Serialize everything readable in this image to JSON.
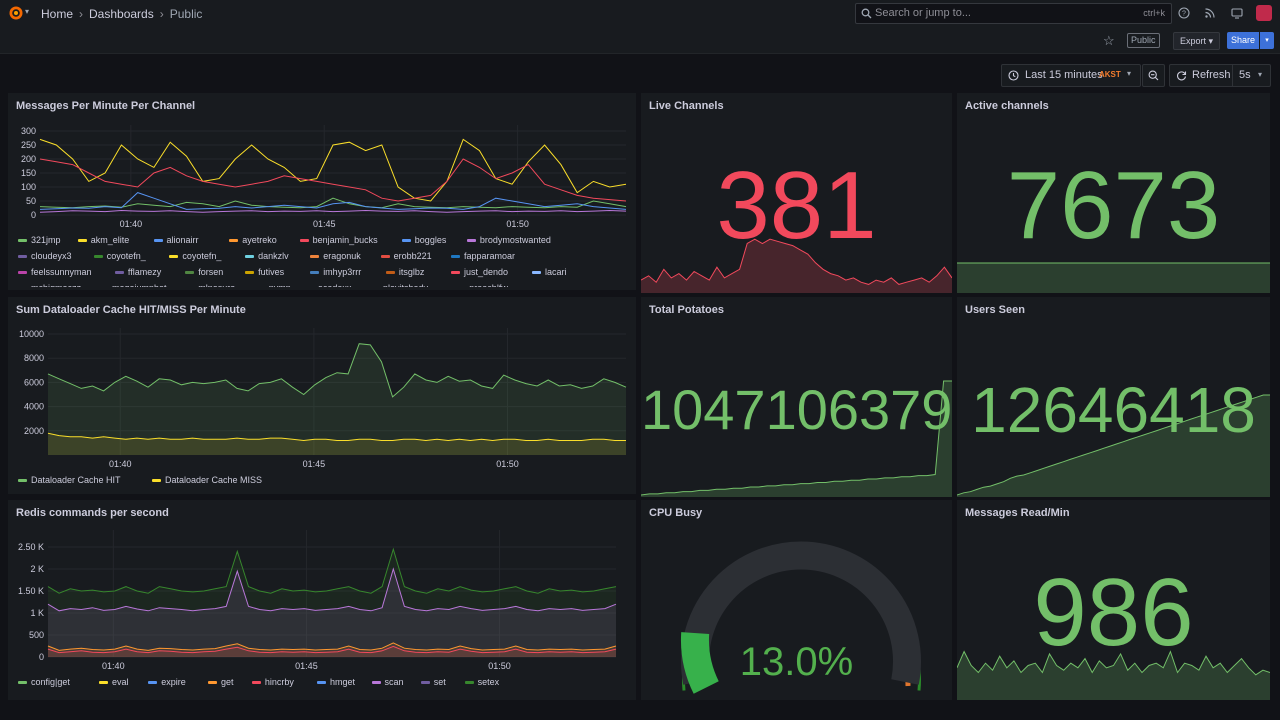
{
  "topbar": {
    "breadcrumb": [
      "Home",
      "Dashboards",
      "Public"
    ],
    "search_placeholder": "Search or jump to...",
    "search_shortcut": "ctrl+k",
    "icons": [
      "help-icon",
      "rss-icon",
      "tv-icon"
    ]
  },
  "subbar": {
    "public_badge": "Public",
    "export_label": "Export",
    "share_label": "Share"
  },
  "timebar": {
    "range_label": "Last 15 minutes",
    "timezone": "AKST",
    "refresh_label": "Refresh",
    "refresh_interval": "5s"
  },
  "colors": {
    "green": "#73bf69",
    "red": "#f2495c",
    "yellow": "#fade2a",
    "orange": "#ff9830",
    "purple": "#b877d9",
    "blue": "#5794f2"
  },
  "panels": {
    "messages": {
      "title": "Messages Per Minute Per Channel",
      "yticks": [
        "300",
        "250",
        "200",
        "150",
        "100",
        "50",
        "0"
      ],
      "xticks": [
        "01:40",
        "01:45",
        "01:50"
      ],
      "legend": [
        {
          "name": "321jmp",
          "color": "#73bf69"
        },
        {
          "name": "akm_elite",
          "color": "#fade2a"
        },
        {
          "name": "alionairr",
          "color": "#5794f2"
        },
        {
          "name": "ayetreko",
          "color": "#ff9830"
        },
        {
          "name": "benjamin_bucks",
          "color": "#f2495c"
        },
        {
          "name": "boggles",
          "color": "#5794f2"
        },
        {
          "name": "brodymostwanted",
          "color": "#b877d9"
        },
        {
          "name": "cloudeyx3",
          "color": "#705da0"
        },
        {
          "name": "coyotefn_",
          "color": "#37872d"
        },
        {
          "name": "coyotefn_",
          "color": "#fade2a"
        },
        {
          "name": "dankzlv",
          "color": "#6ed0e0"
        },
        {
          "name": "eragonuk",
          "color": "#ef843c"
        },
        {
          "name": "erobb221",
          "color": "#e24d42"
        },
        {
          "name": "fapparamoar",
          "color": "#1f78c1"
        },
        {
          "name": "feelssunnyman",
          "color": "#ba43a9"
        },
        {
          "name": "fflamezy",
          "color": "#705da0"
        },
        {
          "name": "forsen",
          "color": "#508642"
        },
        {
          "name": "futives",
          "color": "#cca300"
        },
        {
          "name": "imhyp3rrr",
          "color": "#447ebc"
        },
        {
          "name": "itsglbz",
          "color": "#c15c17"
        },
        {
          "name": "just_dendo",
          "color": "#f2495c"
        },
        {
          "name": "lacari",
          "color": "#8ab8ff"
        },
        {
          "name": "mcbigmaczz",
          "color": "#ff7383"
        },
        {
          "name": "megajumpbot",
          "color": "#ca95e5"
        },
        {
          "name": "mlnosura",
          "color": "#56a64b"
        },
        {
          "name": "nymn",
          "color": "#e0b400"
        },
        {
          "name": "ocedexx",
          "color": "#8ab8ff"
        },
        {
          "name": "playitshady",
          "color": "#ff9830"
        },
        {
          "name": "preachlfw",
          "color": "#e02f44"
        }
      ]
    },
    "live_channels": {
      "title": "Live Channels",
      "value": "381"
    },
    "active_channels": {
      "title": "Active channels",
      "value": "7673"
    },
    "dataloader": {
      "title": "Sum Dataloader Cache HIT/MISS Per Minute",
      "yticks": [
        "10000",
        "8000",
        "6000",
        "4000",
        "2000"
      ],
      "xticks": [
        "01:40",
        "01:45",
        "01:50"
      ],
      "legend": [
        {
          "name": "Dataloader Cache HIT",
          "color": "#73bf69"
        },
        {
          "name": "Dataloader Cache MISS",
          "color": "#fade2a"
        }
      ]
    },
    "total_potatoes": {
      "title": "Total Potatoes",
      "value": "1047106379"
    },
    "users_seen": {
      "title": "Users Seen",
      "value": "12646418"
    },
    "redis": {
      "title": "Redis commands per second",
      "yticks": [
        "2.50 K",
        "2 K",
        "1.50 K",
        "1 K",
        "500",
        "0"
      ],
      "xticks": [
        "01:40",
        "01:45",
        "01:50"
      ],
      "legend": [
        {
          "name": "config|get",
          "color": "#73bf69"
        },
        {
          "name": "eval",
          "color": "#fade2a"
        },
        {
          "name": "expire",
          "color": "#5794f2"
        },
        {
          "name": "get",
          "color": "#ff9830"
        },
        {
          "name": "hincrby",
          "color": "#f2495c"
        },
        {
          "name": "hmget",
          "color": "#5794f2"
        },
        {
          "name": "scan",
          "color": "#b877d9"
        },
        {
          "name": "set",
          "color": "#705da0"
        },
        {
          "name": "setex",
          "color": "#37872d"
        }
      ]
    },
    "cpu_busy": {
      "title": "CPU Busy",
      "value": "13.0%",
      "percent": 13.0
    },
    "messages_read": {
      "title": "Messages Read/Min",
      "value": "986"
    }
  },
  "chart_data": [
    {
      "type": "line",
      "title": "Messages Per Minute Per Channel",
      "ylim": [
        0,
        300
      ],
      "series": [
        {
          "name": "akm_elite",
          "values": [
            270,
            250,
            200,
            120,
            150,
            250,
            200,
            170,
            260,
            210,
            120,
            130,
            200,
            250,
            200,
            170,
            120,
            130,
            250,
            260,
            230,
            250,
            100,
            60,
            50,
            120,
            270,
            230,
            130,
            110,
            190,
            250,
            180,
            80,
            120,
            100,
            110
          ]
        },
        {
          "name": "benjamin_bucks",
          "values": [
            200,
            190,
            180,
            150,
            120,
            110,
            100,
            150,
            170,
            140,
            120,
            110,
            100,
            110,
            120,
            140,
            130,
            120,
            110,
            100,
            90,
            60,
            50,
            60,
            70,
            120,
            200,
            170,
            130,
            150,
            180,
            110,
            90,
            70,
            60,
            55,
            50
          ]
        },
        {
          "name": "321jmp",
          "values": [
            30,
            28,
            26,
            30,
            32,
            28,
            40,
            35,
            30,
            45,
            40,
            30,
            50,
            35,
            30,
            28,
            26,
            30,
            60,
            40,
            30,
            26,
            40,
            30,
            28,
            26,
            30,
            28,
            26,
            30,
            28,
            26,
            30,
            28,
            50,
            40,
            30
          ]
        },
        {
          "name": "alionairr",
          "values": [
            20,
            22,
            25,
            24,
            30,
            26,
            80,
            60,
            40,
            20,
            22,
            24,
            30,
            25,
            30,
            35,
            30,
            25,
            40,
            45,
            30,
            25,
            20,
            22,
            25,
            24,
            20,
            30,
            60,
            50,
            40,
            30,
            35,
            40,
            30,
            25,
            20
          ]
        },
        {
          "name": "brodymostwanted",
          "values": [
            10,
            12,
            15,
            14,
            12,
            16,
            14,
            13,
            15,
            12,
            10,
            12,
            14,
            15,
            12,
            14,
            13,
            15,
            12,
            14,
            16,
            14,
            13,
            15,
            12,
            10,
            12,
            14,
            15,
            12,
            14,
            13,
            15,
            12,
            14,
            16,
            14
          ]
        }
      ]
    },
    {
      "type": "line",
      "title": "Sum Dataloader Cache HIT/MISS Per Minute",
      "ylim": [
        0,
        10000
      ],
      "series": [
        {
          "name": "Dataloader Cache HIT",
          "values": [
            6700,
            6300,
            5900,
            5500,
            5700,
            5300,
            6000,
            6500,
            6100,
            5600,
            6300,
            6200,
            5800,
            6000,
            5900,
            6000,
            6200,
            5500,
            5300,
            5900,
            6000,
            6300,
            5600,
            5000,
            5800,
            6400,
            6800,
            6700,
            9200,
            9100,
            7700,
            4800,
            5600,
            6700,
            6200,
            6000,
            6500,
            6100,
            6200,
            5700,
            5500,
            6600,
            6200,
            5900,
            5700,
            6200,
            5700,
            5800,
            5500,
            5700,
            6300,
            6000,
            5600
          ]
        },
        {
          "name": "Dataloader Cache MISS",
          "values": [
            1800,
            1600,
            1500,
            1500,
            1400,
            1500,
            1400,
            1300,
            1400,
            1300,
            1400,
            1300,
            1300,
            1400,
            1300,
            1300,
            1300,
            1400,
            1300,
            1300,
            1400,
            1400,
            1300,
            1200,
            1300,
            1300,
            1200,
            1200,
            1300,
            1300,
            1200,
            1200,
            1300,
            1300,
            1200,
            1300,
            1200,
            1300,
            1200,
            1300,
            1200,
            1300,
            1300,
            1200,
            1200,
            1300,
            1200,
            1200,
            1200,
            1300,
            1300,
            1200,
            1200
          ]
        }
      ]
    },
    {
      "type": "area",
      "title": "Redis commands per second",
      "ylim": [
        0,
        2750
      ],
      "series": [
        {
          "name": "setex",
          "values": [
            1600,
            1450,
            1550,
            1500,
            1520,
            1480,
            1500,
            1600,
            1500,
            1450,
            1600,
            1550,
            1500,
            1480,
            1500,
            1550,
            1600,
            2400,
            1600,
            1500,
            1450,
            1550,
            1500,
            1520,
            1480,
            1500,
            1550,
            1600,
            1500,
            1450,
            1600,
            2450,
            1600,
            1500,
            1450,
            1550,
            1500,
            1600,
            1520,
            1480,
            1500,
            1550,
            1600,
            1500,
            1450,
            1550,
            1500,
            1520,
            1480,
            1500,
            1550,
            1600
          ]
        },
        {
          "name": "scan",
          "values": [
            1200,
            1050,
            1100,
            1080,
            1120,
            1060,
            1080,
            1150,
            1090,
            1050,
            1120,
            1100,
            1080,
            1050,
            1080,
            1100,
            1150,
            1950,
            1150,
            1080,
            1050,
            1100,
            1080,
            1100,
            1060,
            1080,
            1100,
            1150,
            1080,
            1050,
            1120,
            2000,
            1150,
            1080,
            1050,
            1100,
            1080,
            1150,
            1100,
            1060,
            1080,
            1100,
            1150,
            1080,
            1050,
            1100,
            1080,
            1100,
            1060,
            1080,
            1100,
            1200
          ]
        },
        {
          "name": "get",
          "values": [
            250,
            150,
            180,
            200,
            170,
            160,
            180,
            250,
            180,
            150,
            200,
            190,
            170,
            160,
            180,
            190,
            250,
            300,
            200,
            170,
            160,
            180,
            170,
            180,
            160,
            170,
            180,
            250,
            170,
            160,
            200,
            320,
            200,
            170,
            160,
            180,
            170,
            250,
            190,
            160,
            170,
            180,
            250,
            170,
            160,
            180,
            170,
            180,
            160,
            170,
            180,
            250
          ]
        },
        {
          "name": "hincrby",
          "values": [
            180,
            100,
            120,
            140,
            110,
            100,
            120,
            180,
            120,
            100,
            140,
            130,
            110,
            100,
            120,
            130,
            180,
            220,
            140,
            110,
            100,
            120,
            110,
            120,
            100,
            110,
            120,
            180,
            110,
            100,
            140,
            240,
            140,
            110,
            100,
            120,
            110,
            180,
            130,
            100,
            110,
            120,
            180,
            110,
            100,
            120,
            110,
            120,
            100,
            110,
            120,
            180
          ]
        }
      ]
    },
    {
      "type": "line",
      "title": "Live Channels",
      "series": [
        {
          "name": "Live Channels",
          "values": [
            380,
            382,
            379,
            385,
            381,
            383,
            380,
            384,
            382,
            380,
            386,
            381,
            383,
            385,
            397,
            399,
            397,
            399,
            398,
            397,
            396,
            394,
            392,
            388,
            385,
            383,
            382,
            380,
            381,
            379,
            378,
            380,
            379,
            381,
            378,
            379,
            380,
            381,
            379,
            382,
            386,
            381
          ]
        }
      ]
    },
    {
      "type": "line",
      "title": "Active channels",
      "series": [
        {
          "name": "Active channels",
          "values": [
            7673,
            7673,
            7673,
            7673,
            7673,
            7673,
            7673,
            7673,
            7673,
            7673
          ]
        }
      ]
    },
    {
      "type": "line",
      "title": "Total Potatoes",
      "series": [
        {
          "name": "Total Potatoes",
          "values": [
            0,
            1,
            1,
            2,
            2,
            3,
            3,
            4,
            4,
            5,
            5,
            6,
            6,
            7,
            7,
            8,
            8,
            9,
            9,
            10,
            10,
            11,
            11,
            12,
            12,
            13,
            13,
            14,
            14,
            15,
            15,
            16,
            16,
            17,
            17,
            18,
            100,
            100
          ]
        }
      ]
    },
    {
      "type": "line",
      "title": "Users Seen",
      "series": [
        {
          "name": "Users Seen",
          "values": [
            0,
            2,
            3,
            5,
            7,
            8,
            10,
            12,
            15,
            17,
            18,
            20,
            22,
            24,
            26,
            28,
            30,
            32,
            34,
            36,
            38,
            40,
            42,
            44,
            46,
            48,
            50,
            52,
            54,
            56,
            58,
            60,
            62,
            64,
            66,
            68,
            70,
            72,
            74,
            76,
            78,
            80,
            82,
            84,
            86,
            88,
            90,
            90
          ]
        }
      ]
    },
    {
      "type": "line",
      "title": "Messages Read/Min",
      "series": [
        {
          "name": "Messages Read/Min",
          "values": [
            980,
            1050,
            990,
            960,
            1000,
            970,
            1030,
            980,
            1010,
            960,
            990,
            1000,
            960,
            1040,
            990,
            970,
            1000,
            980,
            1020,
            960,
            1010,
            980,
            990,
            1040,
            970,
            1000,
            960,
            990,
            1000,
            980,
            1050,
            960,
            1000,
            990,
            970,
            1030,
            980,
            1000,
            960,
            990,
            1020,
            980,
            950,
            970,
            960
          ]
        }
      ]
    }
  ]
}
